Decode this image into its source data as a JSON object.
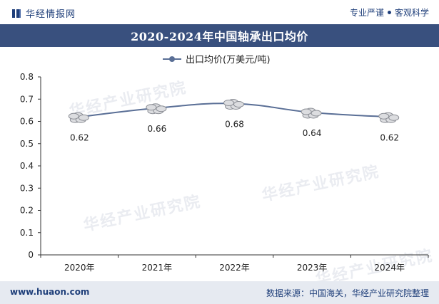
{
  "header": {
    "brand": "华经情报网",
    "slogan_left": "专业严谨",
    "slogan_right": "客观科学"
  },
  "title": "2020-2024年中国轴承出口均价",
  "watermark": "华经产业研究院",
  "footer": {
    "url": "www.huaon.com",
    "source": "数据来源：中国海关，华经产业研究院整理"
  },
  "colors": {
    "title_band": "#39507e",
    "line": "#5a6f96",
    "footer_band": "#e6eaf1",
    "brand_text": "#1f3f7a"
  },
  "chart_data": {
    "type": "line",
    "title": "2020-2024年中国轴承出口均价",
    "categories": [
      "2020年",
      "2021年",
      "2022年",
      "2023年",
      "2024年"
    ],
    "series": [
      {
        "name": "出口均价(万美元/吨)",
        "values": [
          0.62,
          0.66,
          0.68,
          0.64,
          0.62
        ]
      }
    ],
    "data_labels": [
      "0.62",
      "0.66",
      "0.68",
      "0.64",
      "0.62"
    ],
    "yticks": [
      "0",
      "0.1",
      "0.2",
      "0.3",
      "0.4",
      "0.5",
      "0.6",
      "0.7",
      "0.8"
    ],
    "ylim": [
      0,
      0.8
    ],
    "grid": false,
    "legend": "top-center",
    "marker": "coin-stack"
  }
}
